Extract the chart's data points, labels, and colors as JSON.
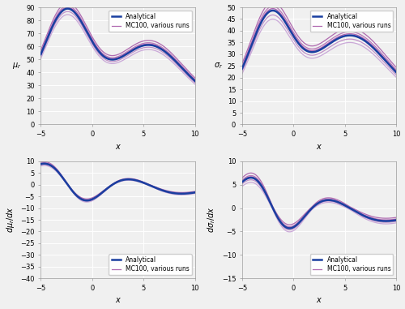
{
  "x_min": -5,
  "x_max": 10,
  "n_points": 500,
  "analytical_color": "#1a3fa0",
  "mc_colors": [
    "#b06ab0",
    "#b878b8",
    "#c090c8",
    "#caa8d8",
    "#b060b0"
  ],
  "mc_offsets_mu": [
    4.5,
    2.2,
    -2.2,
    -4.5,
    1.0
  ],
  "mc_offsets_sigma": [
    3.5,
    1.8,
    -1.8,
    -3.5,
    0.8
  ],
  "mc_offsets_dmu": [
    0.8,
    0.35,
    -0.35,
    -0.8,
    0.15
  ],
  "mc_offsets_dsigma": [
    1.0,
    0.45,
    -0.45,
    -1.0,
    0.2
  ],
  "analytical_lw": 1.8,
  "mc_lw": 0.9,
  "ylim_mu": [
    0,
    90
  ],
  "ylim_sigma": [
    0,
    50
  ],
  "ylim_dmu": [
    -40,
    10
  ],
  "ylim_dsigma": [
    -15,
    10
  ],
  "yticks_mu": [
    0,
    10,
    20,
    30,
    40,
    50,
    60,
    70,
    80,
    90
  ],
  "yticks_sigma": [
    0,
    5,
    10,
    15,
    20,
    25,
    30,
    35,
    40,
    45,
    50
  ],
  "yticks_dmu": [
    -40,
    -35,
    -30,
    -25,
    -20,
    -15,
    -10,
    -5,
    0,
    5,
    10
  ],
  "yticks_dsigma": [
    -15,
    -10,
    -5,
    0,
    5,
    10
  ],
  "xticks": [
    -5,
    0,
    5,
    10
  ],
  "legend_analytical": "Analytical",
  "legend_mc": "MC100, various runs",
  "fig_bg": "#f0f0f0",
  "ax_bg": "#f0f0f0",
  "grid_color": "#ffffff",
  "grid_lw": 0.7,
  "spine_color": "#999999"
}
